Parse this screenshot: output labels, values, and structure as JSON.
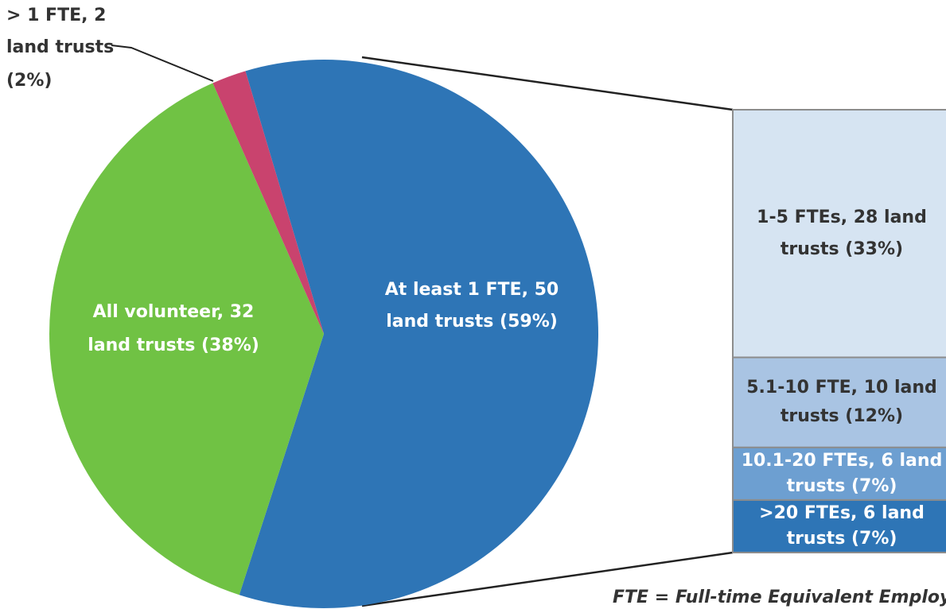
{
  "chart_data": {
    "type": "pie-of-bar",
    "slices": [
      {
        "label": [
          "At least  1 FTE, 50",
          "land trusts (59%)"
        ],
        "value": 59,
        "color": "#2e75b6",
        "text_color": "#ffffff"
      },
      {
        "label": [
          "All volunteer, 32",
          "land trusts (38%)"
        ],
        "value": 38,
        "color": "#70c244",
        "text_color": "#ffffff"
      },
      {
        "label": [
          "> 1 FTE, 2",
          "land trusts",
          "(2%)"
        ],
        "value": 2,
        "color": "#c9436e",
        "text_color": "#333333"
      }
    ],
    "breakdown": [
      {
        "label": [
          "1-5 FTEs, 28 land",
          "trusts (33%)"
        ],
        "value": 33,
        "color": "#d6e4f2",
        "text_color": "#333333"
      },
      {
        "label": [
          "5.1-10 FTE, 10 land",
          "trusts (12%)"
        ],
        "value": 12,
        "color": "#a9c4e3",
        "text_color": "#333333"
      },
      {
        "label": [
          "10.1-20 FTEs, 6 land",
          "trusts (7%)"
        ],
        "value": 7,
        "color": "#6d9fd1",
        "text_color": "#ffffff"
      },
      {
        "label": [
          ">20 FTEs, 6 land",
          "trusts (7%)"
        ],
        "value": 7,
        "color": "#2e75b6",
        "text_color": "#ffffff"
      }
    ],
    "footnote": "FTE = Full-time Equivalent Employee"
  }
}
